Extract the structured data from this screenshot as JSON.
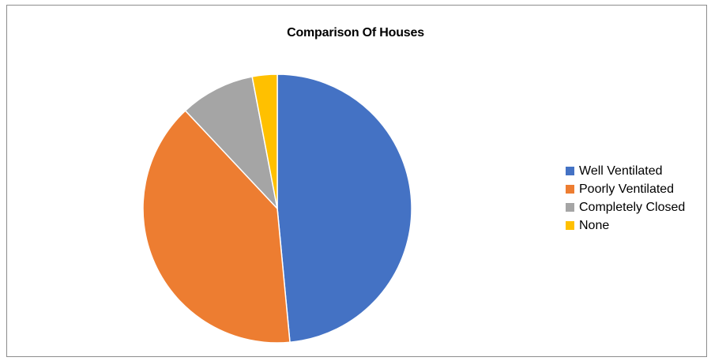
{
  "chart_data": {
    "type": "pie",
    "title": "Comparison Of Houses",
    "categories": [
      "Well Ventilated",
      "Poorly Ventilated",
      "Completely Closed",
      "None"
    ],
    "values": [
      48.5,
      39.5,
      9,
      3
    ],
    "colors": [
      "#4472C4",
      "#ED7D31",
      "#A5A5A5",
      "#FFC000"
    ],
    "start_angle_deg": 0,
    "direction": "clockwise",
    "legend_position": "right"
  }
}
